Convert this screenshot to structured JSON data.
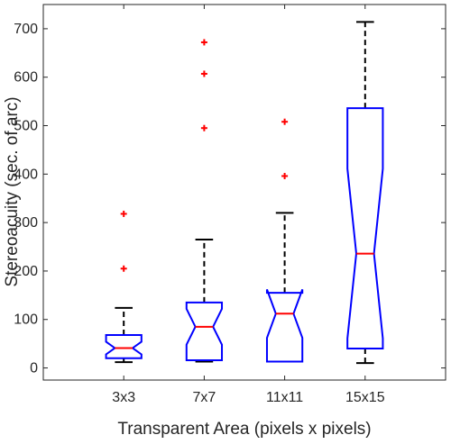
{
  "chart_data": {
    "type": "boxplot",
    "notched": true,
    "xlabel": "Transparent Area (pixels x pixels)",
    "ylabel": "Stereoacuity (sec. of arc)",
    "ylim": [
      -25,
      750
    ],
    "yticks": [
      0,
      100,
      200,
      300,
      400,
      500,
      600,
      700
    ],
    "grid": false,
    "colors": {
      "box": "#0000ff",
      "median": "#ff0000",
      "whisker": "#000000",
      "outlier": "#ff0000",
      "axis": "#262626"
    },
    "groups": [
      {
        "label": "3x3",
        "q1": 20,
        "median": 41,
        "q3": 68,
        "notch_low": 28,
        "notch_high": 54,
        "whisker_low": 12,
        "whisker_high": 124,
        "outliers": [
          205,
          318
        ]
      },
      {
        "label": "7x7",
        "q1": 16,
        "median": 85,
        "q3": 135,
        "notch_low": 48,
        "notch_high": 122,
        "whisker_low": 13,
        "whisker_high": 265,
        "outliers": [
          495,
          607,
          672
        ]
      },
      {
        "label": "11x11",
        "q1": 13,
        "median": 112,
        "q3": 155,
        "notch_low": 62,
        "notch_high": 162,
        "whisker_low": 13,
        "whisker_high": 320,
        "outliers": [
          396,
          508
        ]
      },
      {
        "label": "15x15",
        "q1": 40,
        "median": 236,
        "q3": 536,
        "notch_low": 61,
        "notch_high": 411,
        "whisker_low": 10,
        "whisker_high": 714,
        "outliers": []
      }
    ]
  }
}
